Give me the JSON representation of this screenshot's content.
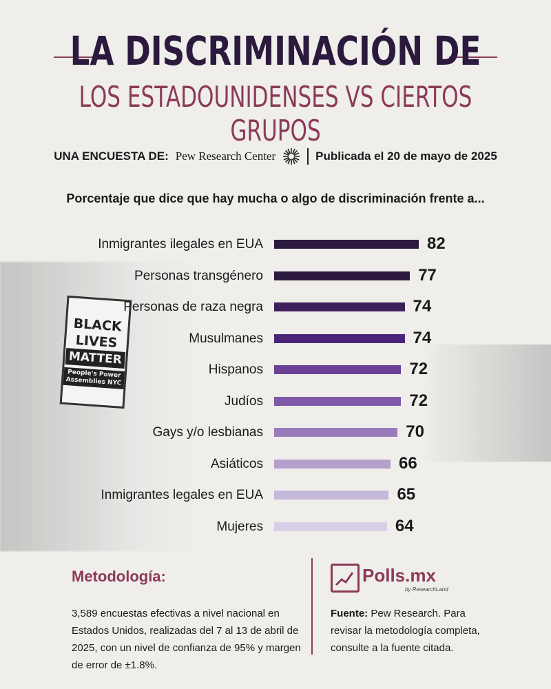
{
  "header": {
    "title_line1": "LA DISCRIMINACIÓN DE",
    "title_line2": "LOS ESTADOUNIDENSES VS CIERTOS GRUPOS"
  },
  "survey": {
    "prefix": "UNA ENCUESTA DE:",
    "org": "Pew Research Center",
    "published": "Publicada el 20 de mayo de 2025"
  },
  "subtitle": "Porcentaje que dice que hay mucha o algo de discriminación frente a...",
  "sign": {
    "line1": "BLACK",
    "line2": "LIVES",
    "line3": "MATTER",
    "line4": "People's Power Assemblies NYC"
  },
  "chart_data": {
    "type": "bar",
    "orientation": "horizontal",
    "categories": [
      "Inmigrantes ilegales en EUA",
      "Personas transgénero",
      "Personas de raza negra",
      "Musulmanes",
      "Hispanos",
      "Judíos",
      "Gays y/o lesbianas",
      "Asiáticos",
      "Inmigrantes legales en EUA",
      "Mujeres"
    ],
    "values": [
      82,
      77,
      74,
      74,
      72,
      72,
      70,
      66,
      65,
      64
    ],
    "bar_colors": [
      "#2b1a3d",
      "#2b1a3d",
      "#3d1f5c",
      "#4b2678",
      "#6b4196",
      "#7f58a8",
      "#9a7cbb",
      "#b3a0cd",
      "#c6b8db",
      "#d8cee6"
    ],
    "title": "Porcentaje que dice que hay mucha o algo de discriminación frente a...",
    "xlabel": "",
    "ylabel": ""
  },
  "methodology": {
    "title": "Metodología:",
    "text": "3,589 encuestas efectivas a nivel nacional en Estados Unidos, realizadas del 7 al 13 de abril de 2025, con un nivel de confianza de 95% y margen de error de ±1.8%."
  },
  "brand": {
    "name": "Polls.mx",
    "tagline": "by ResearchLand",
    "color": "#8b3a57"
  },
  "source": {
    "label": "Fuente:",
    "text": " Pew Research. Para revisar la metodología completa, consulte a la fuente citada."
  }
}
